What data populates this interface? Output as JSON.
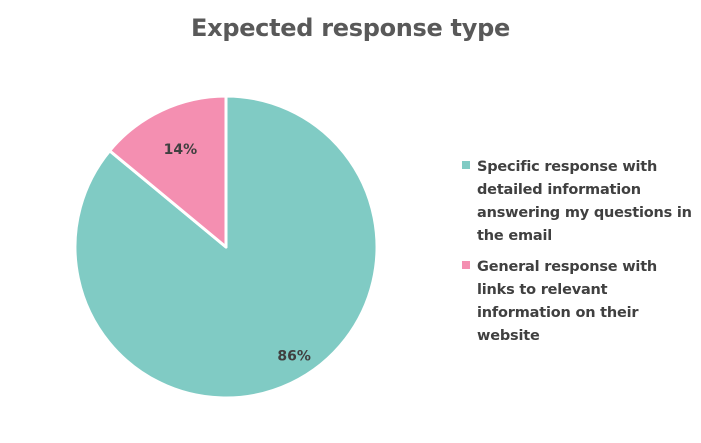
{
  "chart_data": {
    "type": "pie",
    "title": "Expected response type",
    "series": [
      {
        "name": "Specific response with detailed information answering my questions in the email",
        "value": 86,
        "label": "86%",
        "color": "#80CBC4"
      },
      {
        "name": "General response with links to relevant information on their website",
        "value": 14,
        "label": "14%",
        "color": "#F48FB1"
      }
    ],
    "legend_position": "right",
    "start_angle": "12 o'clock",
    "direction": "clockwise"
  }
}
